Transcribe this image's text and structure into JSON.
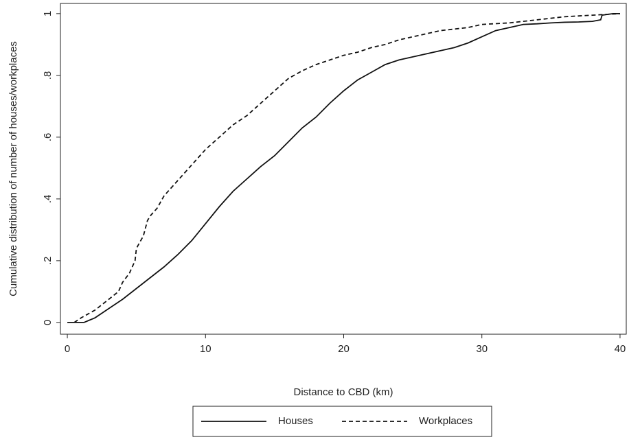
{
  "chart_data": {
    "type": "line",
    "x_label": "Distance to CBD (km)",
    "y_label": "Cumulative distribution of number of houses/workplaces",
    "xlim": [
      -0.5,
      40.45
    ],
    "ylim": [
      -0.038,
      1.033
    ],
    "xticks": [
      0,
      10,
      20,
      30,
      40
    ],
    "yticks": [
      0,
      {
        "value": 0.2,
        "label": ".2"
      },
      {
        "value": 0.4,
        "label": ".4"
      },
      {
        "value": 0.6,
        "label": ".6"
      },
      {
        "value": 0.8,
        "label": ".8"
      },
      1
    ],
    "grid": false,
    "legend": "bottom",
    "series": [
      {
        "name": "Houses",
        "color": "#111111",
        "dashed": false,
        "x": [
          0,
          1.2,
          2,
          3,
          4,
          5,
          6,
          7,
          8,
          9,
          10,
          11,
          12,
          13,
          14,
          15,
          16,
          17,
          18,
          19,
          20,
          21,
          22,
          23,
          24,
          25,
          26,
          27,
          28,
          29,
          30,
          31,
          32,
          33,
          34,
          35,
          36,
          37,
          38,
          38.6,
          38.7,
          39.5,
          40
        ],
        "values": [
          0,
          0,
          0.015,
          0.045,
          0.075,
          0.11,
          0.145,
          0.18,
          0.22,
          0.265,
          0.32,
          0.375,
          0.425,
          0.465,
          0.505,
          0.54,
          0.585,
          0.63,
          0.665,
          0.71,
          0.75,
          0.785,
          0.81,
          0.835,
          0.85,
          0.86,
          0.87,
          0.88,
          0.89,
          0.905,
          0.925,
          0.945,
          0.955,
          0.965,
          0.967,
          0.97,
          0.972,
          0.973,
          0.975,
          0.98,
          0.995,
          1,
          1
        ]
      },
      {
        "name": "Workplaces",
        "color": "#111111",
        "dashed": true,
        "x": [
          0.5,
          1,
          2,
          3,
          3.7,
          4,
          4.5,
          4.9,
          5,
          5.5,
          5.8,
          6,
          6.5,
          7,
          8,
          9,
          10,
          11,
          12,
          13,
          14,
          15,
          16,
          17,
          18,
          19,
          20,
          21,
          22,
          23,
          24,
          25,
          26,
          27,
          28,
          29,
          30,
          32,
          34,
          36,
          38,
          40
        ],
        "values": [
          0,
          0.015,
          0.04,
          0.075,
          0.1,
          0.13,
          0.16,
          0.2,
          0.24,
          0.28,
          0.33,
          0.345,
          0.37,
          0.41,
          0.46,
          0.51,
          0.56,
          0.6,
          0.64,
          0.67,
          0.71,
          0.75,
          0.79,
          0.815,
          0.835,
          0.85,
          0.865,
          0.875,
          0.89,
          0.9,
          0.915,
          0.925,
          0.935,
          0.945,
          0.95,
          0.955,
          0.965,
          0.97,
          0.98,
          0.99,
          0.995,
          1
        ]
      }
    ]
  }
}
